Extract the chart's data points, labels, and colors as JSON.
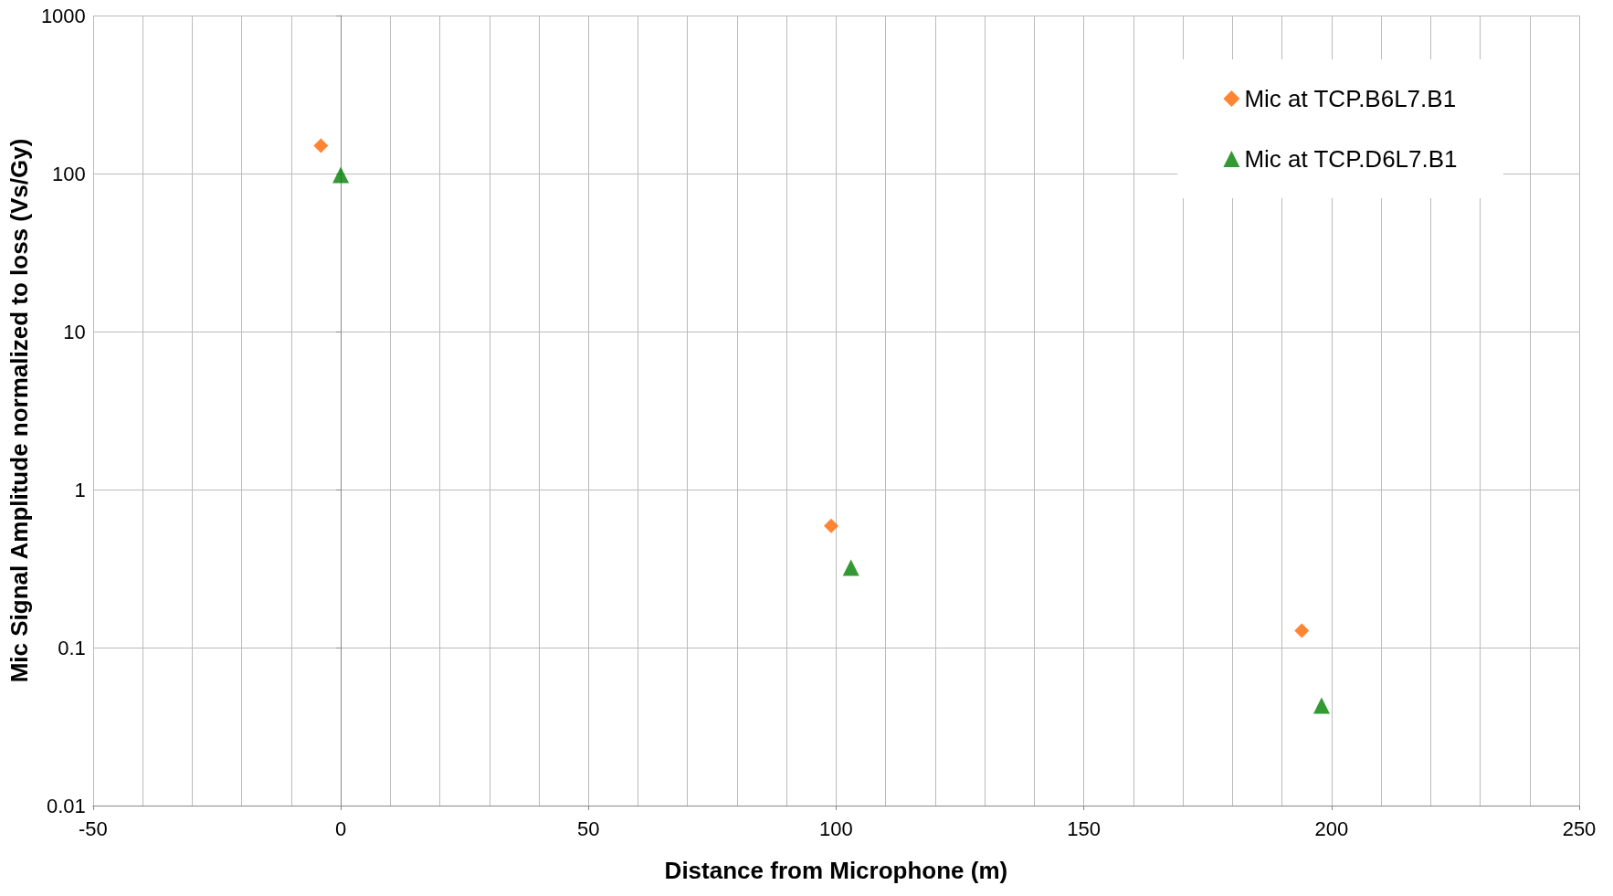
{
  "chart_data": {
    "type": "scatter",
    "xlabel": "Distance from Microphone (m)",
    "ylabel": "Mic Signal Amplitude normalized to loss (Vs/Gy)",
    "series": [
      {
        "name": "Mic at TCP.B6L7.B1",
        "color": "#ff6600",
        "marker": "diamond",
        "x": [
          -4,
          99,
          194
        ],
        "values": [
          150,
          0.59,
          0.128
        ]
      },
      {
        "name": "Mic at TCP.D6L7.B1",
        "color": "#008000",
        "marker": "triangle",
        "x": [
          0,
          103,
          198
        ],
        "values": [
          98,
          0.32,
          0.043
        ]
      }
    ],
    "xlim": [
      -50,
      250
    ],
    "xticks": [
      -50,
      0,
      50,
      100,
      150,
      200,
      250
    ],
    "ylim": [
      0.01,
      1000
    ],
    "yticks": [
      0.01,
      0.1,
      1,
      10,
      100,
      1000
    ],
    "log": "y",
    "grid": true,
    "legend": "top right"
  }
}
